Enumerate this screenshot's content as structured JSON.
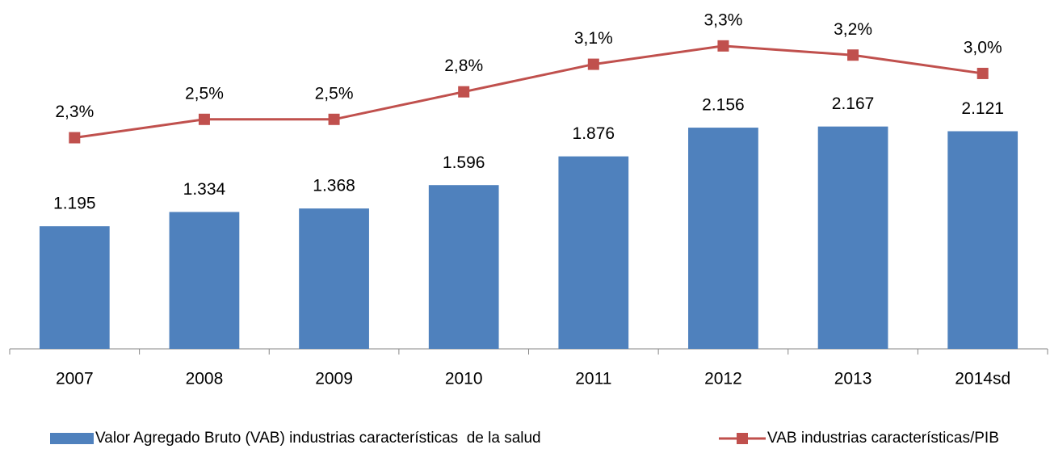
{
  "chart_data": {
    "type": "bar_line",
    "categories": [
      "2007",
      "2008",
      "2009",
      "2010",
      "2011",
      "2012",
      "2013",
      "2014sd"
    ],
    "series": [
      {
        "name": "Valor Agregado Bruto (VAB) industrias características  de la salud",
        "type": "bar",
        "color": "#4f81bd",
        "values": [
          1195,
          1334,
          1368,
          1596,
          1876,
          2156,
          2167,
          2121
        ],
        "value_labels": [
          "1.195",
          "1.334",
          "1.368",
          "1.596",
          "1.876",
          "2.156",
          "2.167",
          "2.121"
        ]
      },
      {
        "name": "VAB industrias características/PIB",
        "type": "line",
        "axis": "y2",
        "color": "#c0504d",
        "values": [
          2.3,
          2.5,
          2.5,
          2.8,
          3.1,
          3.3,
          3.2,
          3.0
        ],
        "value_labels": [
          "2,3%",
          "2,5%",
          "2,5%",
          "2,8%",
          "3,1%",
          "3,3%",
          "3,2%",
          "3,0%"
        ]
      }
    ],
    "ylim": [
      0,
      3400
    ],
    "y2lim": [
      0,
      3.8
    ],
    "legend": "bottom"
  }
}
